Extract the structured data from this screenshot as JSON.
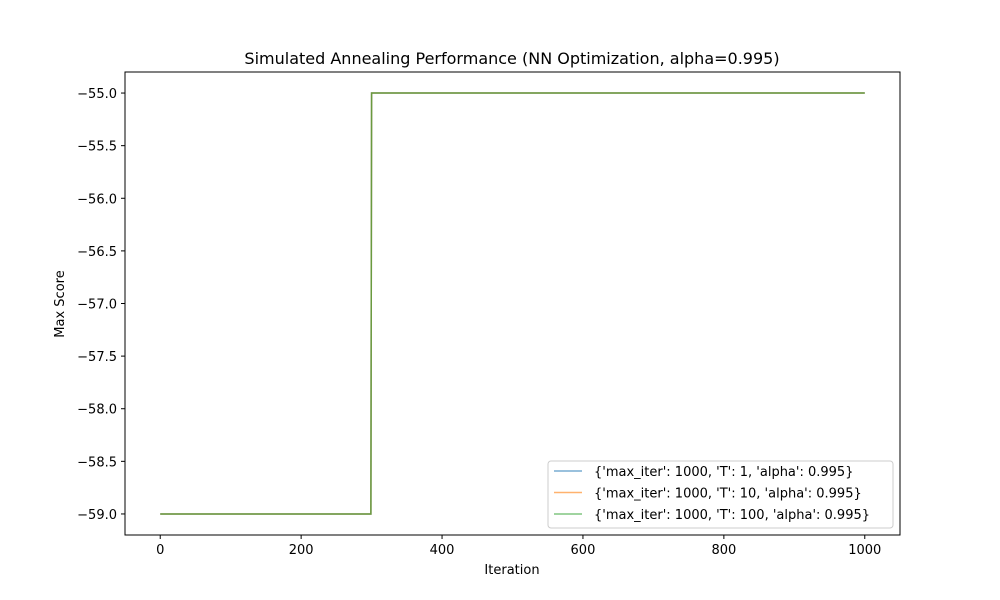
{
  "chart_data": {
    "type": "line",
    "title": "Simulated Annealing Performance (NN Optimization, alpha=0.995)",
    "xlabel": "Iteration",
    "ylabel": "Max Score",
    "xlim": [
      -50,
      1050
    ],
    "ylim": [
      -59.2,
      -54.8
    ],
    "xticks": [
      0,
      200,
      400,
      600,
      800,
      1000
    ],
    "xtick_labels": [
      "0",
      "200",
      "400",
      "600",
      "800",
      "1000"
    ],
    "yticks": [
      -59.0,
      -58.5,
      -58.0,
      -57.5,
      -57.0,
      -56.5,
      -56.0,
      -55.5,
      -55.0
    ],
    "ytick_labels": [
      "−59.0",
      "−58.5",
      "−58.0",
      "−57.5",
      "−57.0",
      "−56.5",
      "−56.0",
      "−55.5",
      "−55.0"
    ],
    "grid": false,
    "legend_position": "lower-right",
    "series": [
      {
        "name": "{'max_iter': 1000, 'T': 1, 'alpha': 0.995}",
        "color": "#1f77b4",
        "x": [
          0,
          299,
          300,
          1000
        ],
        "y": [
          -59.0,
          -59.0,
          -55.0,
          -55.0
        ]
      },
      {
        "name": "{'max_iter': 1000, 'T': 10, 'alpha': 0.995}",
        "color": "#ff7f0e",
        "x": [
          0,
          299,
          300,
          1000
        ],
        "y": [
          -59.0,
          -59.0,
          -55.0,
          -55.0
        ]
      },
      {
        "name": "{'max_iter': 1000, 'T': 100, 'alpha': 0.995}",
        "color": "#2ca02c",
        "x": [
          0,
          299,
          300,
          1000
        ],
        "y": [
          -59.0,
          -59.0,
          -55.0,
          -55.0
        ]
      }
    ]
  }
}
